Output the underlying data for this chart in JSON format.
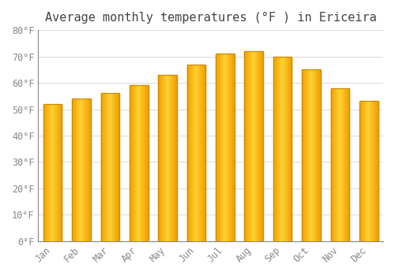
{
  "title": "Average monthly temperatures (°F ) in Ericeira",
  "months": [
    "Jan",
    "Feb",
    "Mar",
    "Apr",
    "May",
    "Jun",
    "Jul",
    "Aug",
    "Sep",
    "Oct",
    "Nov",
    "Dec"
  ],
  "values": [
    52,
    54,
    56,
    59,
    63,
    67,
    71,
    72,
    70,
    65,
    58,
    53
  ],
  "bar_color_center": "#FFD050",
  "bar_color_edge": "#F0A000",
  "ylim": [
    0,
    80
  ],
  "yticks": [
    0,
    10,
    20,
    30,
    40,
    50,
    60,
    70,
    80
  ],
  "ytick_labels": [
    "0°F",
    "10°F",
    "20°F",
    "30°F",
    "40°F",
    "50°F",
    "60°F",
    "70°F",
    "80°F"
  ],
  "background_color": "#FFFFFF",
  "grid_color": "#DDDDDD",
  "title_fontsize": 11,
  "tick_fontsize": 8.5,
  "font_family": "monospace"
}
